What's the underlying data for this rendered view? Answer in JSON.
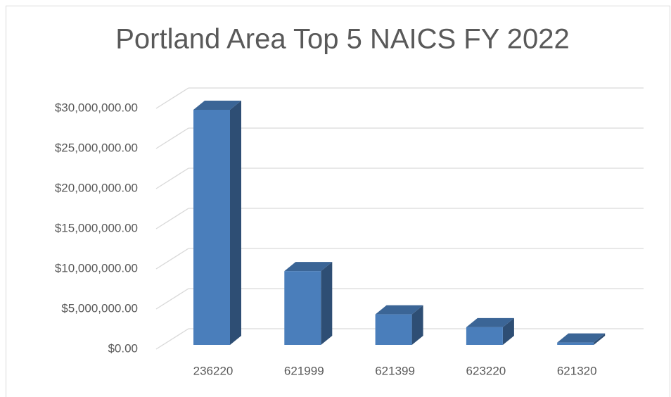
{
  "chart_data": {
    "type": "bar",
    "title": "Portland Area Top 5 NAICS FY 2022",
    "categories": [
      "236220",
      "621999",
      "621399",
      "623220",
      "621320"
    ],
    "values": [
      29300000,
      9200000,
      3800000,
      2200000,
      300000
    ],
    "color": "#4a7ebb",
    "ylim": [
      0,
      30000000
    ],
    "yticks": [
      {
        "value": 0,
        "label": "$0.00"
      },
      {
        "value": 5000000,
        "label": "$5,000,000.00"
      },
      {
        "value": 10000000,
        "label": "$10,000,000.00"
      },
      {
        "value": 15000000,
        "label": "$15,000,000.00"
      },
      {
        "value": 20000000,
        "label": "$20,000,000.00"
      },
      {
        "value": 25000000,
        "label": "$25,000,000.00"
      },
      {
        "value": 30000000,
        "label": "$30,000,000.00"
      }
    ],
    "grid": true
  }
}
